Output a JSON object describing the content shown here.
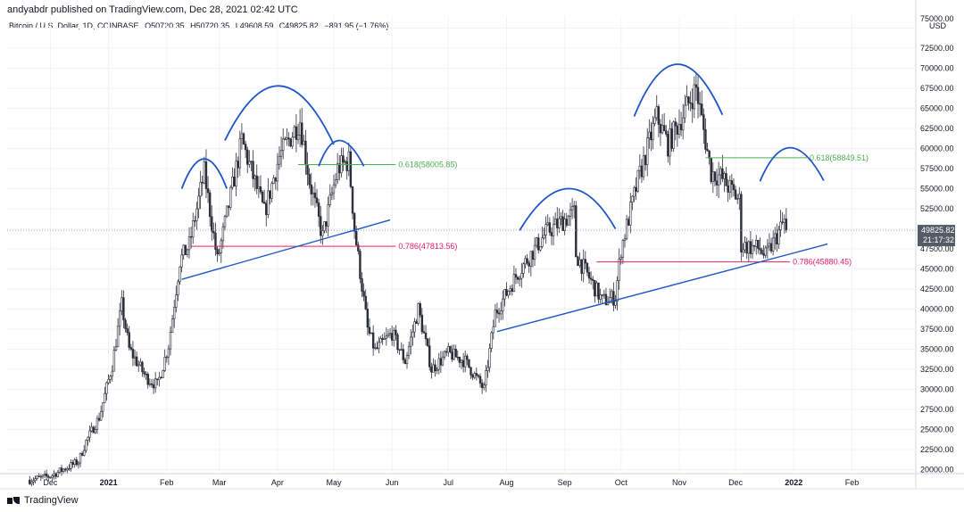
{
  "header": {
    "published": "andyabdr published on TradingView.com, Dec 28, 2021 02:42 UTC",
    "symbol": "Bitcoin / U.S. Dollar, 1D, COINBASE",
    "open": "O50720.35",
    "high": "H50720.35",
    "low": "L49608.59",
    "close": "C49825.82",
    "change": "−891.95 (−1.76%)"
  },
  "footer": {
    "brand": "TradingView"
  },
  "price_axis": {
    "unit": "USD",
    "top_label": "75000.00",
    "last_price": "49825.82",
    "countdown": "21:17:32"
  },
  "chart_data": {
    "type": "candlestick",
    "x_ticks": [
      "Dec",
      "2021",
      "Feb",
      "Mar",
      "Apr",
      "May",
      "Jun",
      "Jul",
      "Aug",
      "Sep",
      "Oct",
      "Nov",
      "Dec",
      "2022",
      "Feb"
    ],
    "y_ticks": [
      20000,
      22500,
      25000,
      27500,
      30000,
      32500,
      35000,
      37500,
      40000,
      42500,
      45000,
      47500,
      50000,
      52500,
      55000,
      57500,
      60000,
      62500,
      65000,
      67500,
      70000,
      72500,
      75000
    ],
    "ylim": [
      19500,
      76500
    ],
    "xlim": [
      "2020-11-08",
      "2022-03-07"
    ],
    "last_price": 49825.82,
    "grid": true,
    "price_path": [
      [
        "2020-11-20",
        18700
      ],
      [
        "2020-12-01",
        19200
      ],
      [
        "2020-12-16",
        21000
      ],
      [
        "2020-12-20",
        23500
      ],
      [
        "2020-12-27",
        26500
      ],
      [
        "2021-01-03",
        33000
      ],
      [
        "2021-01-08",
        40500
      ],
      [
        "2021-01-12",
        35000
      ],
      [
        "2021-01-21",
        31500
      ],
      [
        "2021-01-27",
        30500
      ],
      [
        "2021-02-02",
        35500
      ],
      [
        "2021-02-08",
        46000
      ],
      [
        "2021-02-13",
        48000
      ],
      [
        "2021-02-21",
        57000
      ],
      [
        "2021-02-28",
        46000
      ],
      [
        "2021-03-13",
        61000
      ],
      [
        "2021-03-25",
        52000
      ],
      [
        "2021-04-02",
        59000
      ],
      [
        "2021-04-13",
        63500
      ],
      [
        "2021-04-18",
        56000
      ],
      [
        "2021-04-25",
        49000
      ],
      [
        "2021-05-03",
        57500
      ],
      [
        "2021-05-09",
        58500
      ],
      [
        "2021-05-12",
        50000
      ],
      [
        "2021-05-19",
        37500
      ],
      [
        "2021-05-23",
        34800
      ],
      [
        "2021-06-01",
        37000
      ],
      [
        "2021-06-08",
        33500
      ],
      [
        "2021-06-15",
        40000
      ],
      [
        "2021-06-22",
        32500
      ],
      [
        "2021-07-01",
        34500
      ],
      [
        "2021-07-10",
        33500
      ],
      [
        "2021-07-20",
        30000
      ],
      [
        "2021-07-26",
        39500
      ],
      [
        "2021-08-07",
        44500
      ],
      [
        "2021-08-22",
        49500
      ],
      [
        "2021-09-06",
        52000
      ],
      [
        "2021-09-07",
        46800
      ],
      [
        "2021-09-21",
        41000
      ],
      [
        "2021-09-28",
        41500
      ],
      [
        "2021-10-01",
        47500
      ],
      [
        "2021-10-10",
        56000
      ],
      [
        "2021-10-20",
        64000
      ],
      [
        "2021-10-26",
        60500
      ],
      [
        "2021-11-10",
        67500
      ],
      [
        "2021-11-18",
        57000
      ],
      [
        "2021-11-23",
        56500
      ],
      [
        "2021-12-03",
        53500
      ],
      [
        "2021-12-04",
        48000
      ],
      [
        "2021-12-14",
        47500
      ],
      [
        "2021-12-17",
        46500
      ],
      [
        "2021-12-22",
        48700
      ],
      [
        "2021-12-27",
        51000
      ],
      [
        "2021-12-28",
        49825.82
      ]
    ],
    "fib_levels": [
      {
        "label": "0.618(58005.85)",
        "value": 58005.85,
        "start": "2021-04-12",
        "end": "2021-06-03",
        "color": "#4caf50"
      },
      {
        "label": "0.786(47813.56)",
        "value": 47813.56,
        "start": "2021-02-14",
        "end": "2021-06-03",
        "color": "#e91e63"
      },
      {
        "label": "0.618(58849.51)",
        "value": 58849.51,
        "start": "2021-11-15",
        "end": "2022-01-08",
        "color": "#4caf50"
      },
      {
        "label": "0.786(45880.45)",
        "value": 45880.45,
        "start": "2021-09-18",
        "end": "2021-12-30",
        "color": "#e91e63"
      }
    ],
    "trendlines": [
      {
        "start": [
          "2021-02-09",
          43700
        ],
        "end": [
          "2021-05-31",
          51100
        ],
        "color": "#1e56c8"
      },
      {
        "start": [
          "2021-07-27",
          37200
        ],
        "end": [
          "2022-01-19",
          48100
        ],
        "color": "#1e56c8"
      }
    ],
    "arcs": [
      {
        "start": [
          "2021-02-09",
          55000
        ],
        "peak": [
          "2021-02-21",
          58700
        ],
        "end": [
          "2021-03-05",
          55000
        ]
      },
      {
        "start": [
          "2021-03-04",
          61000
        ],
        "peak": [
          "2021-04-02",
          67800
        ],
        "end": [
          "2021-05-01",
          60500
        ]
      },
      {
        "start": [
          "2021-04-23",
          57800
        ],
        "peak": [
          "2021-05-04",
          61000
        ],
        "end": [
          "2021-05-17",
          57800
        ]
      },
      {
        "start": [
          "2021-08-08",
          49800
        ],
        "peak": [
          "2021-09-03",
          55000
        ],
        "end": [
          "2021-09-28",
          50000
        ]
      },
      {
        "start": [
          "2021-10-08",
          64000
        ],
        "peak": [
          "2021-10-31",
          70500
        ],
        "end": [
          "2021-11-24",
          64200
        ]
      },
      {
        "start": [
          "2021-12-14",
          55900
        ],
        "peak": [
          "2021-12-30",
          60100
        ],
        "end": [
          "2022-01-17",
          56000
        ]
      }
    ]
  }
}
